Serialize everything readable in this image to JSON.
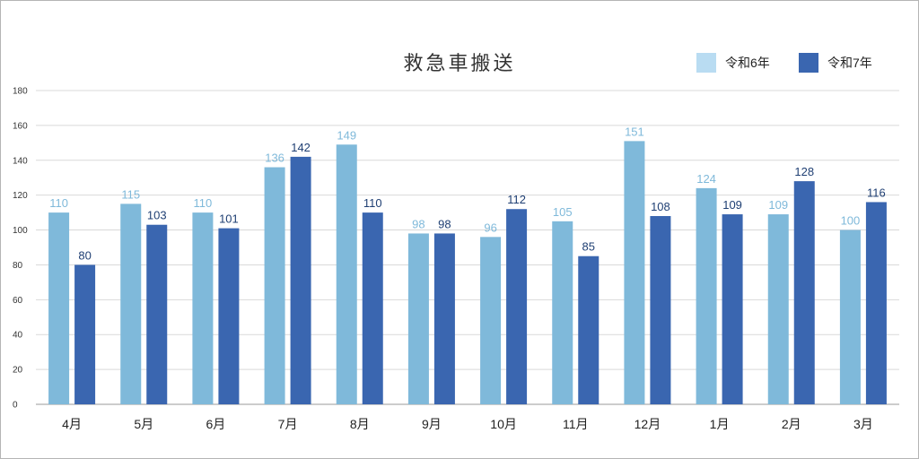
{
  "chart_data": {
    "type": "bar",
    "title": "救急車搬送",
    "categories": [
      "4月",
      "5月",
      "6月",
      "7月",
      "8月",
      "9月",
      "10月",
      "11月",
      "12月",
      "1月",
      "2月",
      "3月"
    ],
    "series": [
      {
        "name": "令和6年",
        "values": [
          110,
          115,
          110,
          136,
          149,
          98,
          96,
          105,
          151,
          124,
          109,
          100
        ],
        "color": "#7fb9da",
        "legend_color": "#b9dcf2",
        "label_color": "#7fb9da"
      },
      {
        "name": "令和7年",
        "values": [
          80,
          103,
          101,
          142,
          110,
          98,
          112,
          85,
          108,
          109,
          128,
          116
        ],
        "color": "#3a66b0",
        "legend_color": "#3a66b0",
        "label_color": "#1f3f73"
      }
    ],
    "ylim": [
      0,
      180
    ],
    "yticks": [
      "0",
      "20",
      "40",
      "60",
      "80",
      "100",
      "120",
      "140",
      "160",
      "180"
    ],
    "grid": true,
    "legend_position": "top-right",
    "xlabel": "",
    "ylabel": ""
  }
}
